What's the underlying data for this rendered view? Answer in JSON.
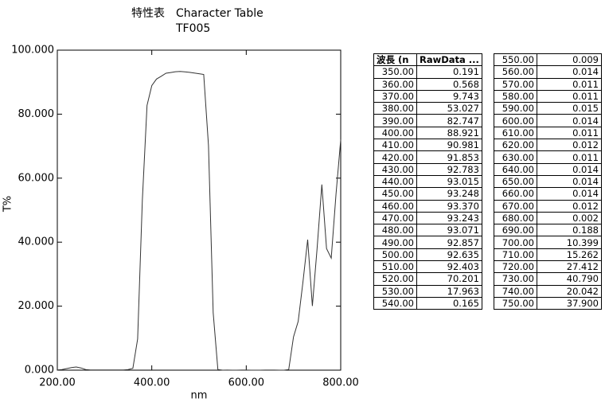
{
  "chart_data": {
    "type": "line",
    "title": "特性表　Character Table",
    "subtitle": "TF005",
    "x_label": "nm",
    "y_label": "T%",
    "color": "#333333",
    "x": [
      200,
      210,
      220,
      230,
      240,
      250,
      260,
      270,
      280,
      290,
      300,
      310,
      320,
      330,
      340,
      350,
      360,
      370,
      380,
      390,
      400,
      410,
      420,
      430,
      440,
      450,
      460,
      470,
      480,
      490,
      500,
      510,
      520,
      530,
      540,
      550,
      560,
      570,
      580,
      590,
      600,
      610,
      620,
      630,
      640,
      650,
      660,
      670,
      680,
      690,
      700,
      710,
      720,
      730,
      740,
      750,
      760,
      770,
      780,
      790,
      800
    ],
    "values": [
      0.05,
      0.2,
      0.5,
      0.8,
      1.0,
      0.7,
      0.2,
      0.05,
      0.05,
      0.05,
      0.05,
      0.05,
      0.05,
      0.05,
      0.05,
      0.191,
      0.568,
      9.743,
      53.027,
      82.747,
      88.921,
      90.981,
      91.853,
      92.783,
      93.015,
      93.248,
      93.37,
      93.243,
      93.071,
      92.857,
      92.635,
      92.403,
      70.201,
      17.963,
      0.165,
      0.009,
      0.014,
      0.011,
      0.011,
      0.015,
      0.014,
      0.011,
      0.012,
      0.011,
      0.014,
      0.014,
      0.014,
      0.012,
      0.002,
      0.188,
      10.399,
      15.262,
      27.412,
      40.79,
      20.042,
      37.9,
      58,
      38,
      35,
      55,
      72
    ],
    "xlim": [
      200,
      800
    ],
    "ylim": [
      0,
      100
    ],
    "xticks": [
      {
        "value": 200,
        "label": "200.00"
      },
      {
        "value": 400,
        "label": "400.00"
      },
      {
        "value": 600,
        "label": "600.00"
      },
      {
        "value": 800,
        "label": "800.00"
      }
    ],
    "yticks": [
      {
        "value": 0,
        "label": "0.000"
      },
      {
        "value": 20,
        "label": "20.000"
      },
      {
        "value": 40,
        "label": "40.000"
      },
      {
        "value": 60,
        "label": "60.000"
      },
      {
        "value": 80,
        "label": "80.000"
      },
      {
        "value": 100,
        "label": "100.000"
      }
    ]
  },
  "table_left": {
    "header": [
      "波長 (n",
      "RawData ..."
    ],
    "rows": [
      [
        "350.00",
        "0.191"
      ],
      [
        "360.00",
        "0.568"
      ],
      [
        "370.00",
        "9.743"
      ],
      [
        "380.00",
        "53.027"
      ],
      [
        "390.00",
        "82.747"
      ],
      [
        "400.00",
        "88.921"
      ],
      [
        "410.00",
        "90.981"
      ],
      [
        "420.00",
        "91.853"
      ],
      [
        "430.00",
        "92.783"
      ],
      [
        "440.00",
        "93.015"
      ],
      [
        "450.00",
        "93.248"
      ],
      [
        "460.00",
        "93.370"
      ],
      [
        "470.00",
        "93.243"
      ],
      [
        "480.00",
        "93.071"
      ],
      [
        "490.00",
        "92.857"
      ],
      [
        "500.00",
        "92.635"
      ],
      [
        "510.00",
        "92.403"
      ],
      [
        "520.00",
        "70.201"
      ],
      [
        "530.00",
        "17.963"
      ],
      [
        "540.00",
        "0.165"
      ]
    ]
  },
  "table_right": {
    "rows": [
      [
        "550.00",
        "0.009"
      ],
      [
        "560.00",
        "0.014"
      ],
      [
        "570.00",
        "0.011"
      ],
      [
        "580.00",
        "0.011"
      ],
      [
        "590.00",
        "0.015"
      ],
      [
        "600.00",
        "0.014"
      ],
      [
        "610.00",
        "0.011"
      ],
      [
        "620.00",
        "0.012"
      ],
      [
        "630.00",
        "0.011"
      ],
      [
        "640.00",
        "0.014"
      ],
      [
        "650.00",
        "0.014"
      ],
      [
        "660.00",
        "0.014"
      ],
      [
        "670.00",
        "0.012"
      ],
      [
        "680.00",
        "0.002"
      ],
      [
        "690.00",
        "0.188"
      ],
      [
        "700.00",
        "10.399"
      ],
      [
        "710.00",
        "15.262"
      ],
      [
        "720.00",
        "27.412"
      ],
      [
        "730.00",
        "40.790"
      ],
      [
        "740.00",
        "20.042"
      ],
      [
        "750.00",
        "37.900"
      ]
    ]
  }
}
